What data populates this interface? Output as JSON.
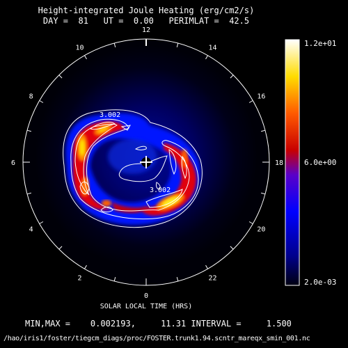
{
  "chart_data": {
    "type": "heatmap",
    "projection": "polar (magnetic local time dial)",
    "title": "Height-integrated Joule Heating (erg/cm2/s)",
    "subtitle": "DAY =  81   UT =  0.00   PERIMLAT =  42.5",
    "xlabel": "SOLAR LOCAL TIME (HRS)",
    "hour_labels": [
      "12",
      "10",
      "8",
      "6",
      "4",
      "2",
      "0",
      "22",
      "20",
      "18",
      "16",
      "14"
    ],
    "hour_values": [
      12,
      10,
      8,
      6,
      4,
      2,
      0,
      22,
      20,
      18,
      16,
      14
    ],
    "colorbar": {
      "min_label": "2.0e-03",
      "mid_label": "6.0e+00",
      "max_label": "1.2e+01",
      "range": [
        0.002,
        12.0
      ]
    },
    "contour_labels": [
      "3.002",
      "3.002"
    ],
    "stats": {
      "min": 0.002193,
      "max": 11.31,
      "interval": 1.5,
      "line": "MIN,MAX =    0.002193,     11.31 INTERVAL =     1.500"
    },
    "filepath": "/hao/iris1/foster/tiegcm_diags/proc/FOSTER.trunk1.94.scntr_mareqx_smin_001.nc"
  }
}
